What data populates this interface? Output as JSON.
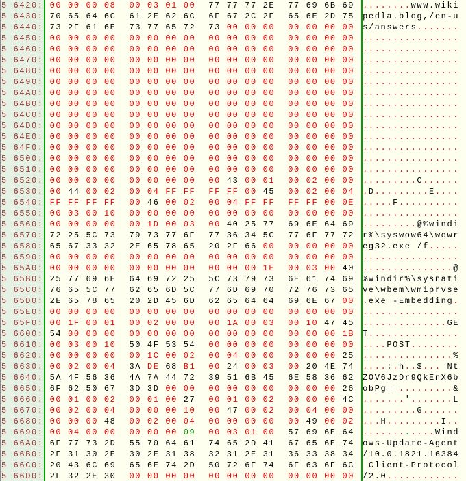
{
  "app": {
    "view": "hex-memory-dump"
  },
  "colors": {
    "background": "#FFFFF0",
    "address_background": "#E5F1E3",
    "address_text": "#993534",
    "divider_green": "#00A000",
    "nonprintable_red": "#EE0000",
    "printable_black": "#000000",
    "selected_green": "#009000",
    "left_edge_gray": "#8C8C8C"
  },
  "hex_view": {
    "bytes_per_row": 16,
    "selected_byte": {
      "row_address": "5 6690:",
      "byte_index": 7,
      "value": "09"
    },
    "rows": [
      {
        "address": "5 6420:",
        "bytes": [
          "00",
          "00",
          "00",
          "08",
          "00",
          "03",
          "01",
          "00",
          "77",
          "77",
          "77",
          "2E",
          "77",
          "69",
          "6B",
          "69"
        ],
        "ascii": "........www.wiki"
      },
      {
        "address": "5 6430:",
        "bytes": [
          "70",
          "65",
          "64",
          "6C",
          "61",
          "2E",
          "62",
          "6C",
          "6F",
          "67",
          "2C",
          "2F",
          "65",
          "6E",
          "2D",
          "75"
        ],
        "ascii": "pedla.blog,/en-u"
      },
      {
        "address": "5 6440:",
        "bytes": [
          "73",
          "2F",
          "61",
          "6E",
          "73",
          "77",
          "65",
          "72",
          "73",
          "00",
          "00",
          "00",
          "00",
          "00",
          "00",
          "00"
        ],
        "ascii": "s/answers......."
      },
      {
        "address": "5 6450:",
        "bytes": [
          "00",
          "00",
          "00",
          "00",
          "00",
          "00",
          "00",
          "00",
          "00",
          "00",
          "00",
          "00",
          "00",
          "00",
          "00",
          "00"
        ],
        "ascii": "................"
      },
      {
        "address": "5 6460:",
        "bytes": [
          "00",
          "00",
          "00",
          "00",
          "00",
          "00",
          "00",
          "00",
          "00",
          "00",
          "00",
          "00",
          "00",
          "00",
          "00",
          "00"
        ],
        "ascii": "................"
      },
      {
        "address": "5 6470:",
        "bytes": [
          "00",
          "00",
          "00",
          "00",
          "00",
          "00",
          "00",
          "00",
          "00",
          "00",
          "00",
          "00",
          "00",
          "00",
          "00",
          "00"
        ],
        "ascii": "................"
      },
      {
        "address": "5 6480:",
        "bytes": [
          "00",
          "00",
          "00",
          "00",
          "00",
          "00",
          "00",
          "00",
          "00",
          "00",
          "00",
          "00",
          "00",
          "00",
          "00",
          "00"
        ],
        "ascii": "................"
      },
      {
        "address": "5 6490:",
        "bytes": [
          "00",
          "00",
          "00",
          "00",
          "00",
          "00",
          "00",
          "00",
          "00",
          "00",
          "00",
          "00",
          "00",
          "00",
          "00",
          "00"
        ],
        "ascii": "................"
      },
      {
        "address": "5 64A0:",
        "bytes": [
          "00",
          "00",
          "00",
          "00",
          "00",
          "00",
          "00",
          "00",
          "00",
          "00",
          "00",
          "00",
          "00",
          "00",
          "00",
          "00"
        ],
        "ascii": "................"
      },
      {
        "address": "5 64B0:",
        "bytes": [
          "00",
          "00",
          "00",
          "00",
          "00",
          "00",
          "00",
          "00",
          "00",
          "00",
          "00",
          "00",
          "00",
          "00",
          "00",
          "00"
        ],
        "ascii": "................"
      },
      {
        "address": "5 64C0:",
        "bytes": [
          "00",
          "00",
          "00",
          "00",
          "00",
          "00",
          "00",
          "00",
          "00",
          "00",
          "00",
          "00",
          "00",
          "00",
          "00",
          "00"
        ],
        "ascii": "................"
      },
      {
        "address": "5 64D0:",
        "bytes": [
          "00",
          "00",
          "00",
          "00",
          "00",
          "00",
          "00",
          "00",
          "00",
          "00",
          "00",
          "00",
          "00",
          "00",
          "00",
          "00"
        ],
        "ascii": "................"
      },
      {
        "address": "5 64E0:",
        "bytes": [
          "00",
          "00",
          "00",
          "00",
          "00",
          "00",
          "00",
          "00",
          "00",
          "00",
          "00",
          "00",
          "00",
          "00",
          "00",
          "00"
        ],
        "ascii": "................"
      },
      {
        "address": "5 64F0:",
        "bytes": [
          "00",
          "00",
          "00",
          "00",
          "00",
          "00",
          "00",
          "00",
          "00",
          "00",
          "00",
          "00",
          "00",
          "00",
          "00",
          "00"
        ],
        "ascii": "................"
      },
      {
        "address": "5 6500:",
        "bytes": [
          "00",
          "00",
          "00",
          "00",
          "00",
          "00",
          "00",
          "00",
          "00",
          "00",
          "00",
          "00",
          "00",
          "00",
          "00",
          "00"
        ],
        "ascii": "................"
      },
      {
        "address": "5 6510:",
        "bytes": [
          "00",
          "00",
          "00",
          "00",
          "00",
          "00",
          "00",
          "00",
          "00",
          "00",
          "00",
          "00",
          "00",
          "00",
          "00",
          "00"
        ],
        "ascii": "................"
      },
      {
        "address": "5 6520:",
        "bytes": [
          "00",
          "00",
          "00",
          "00",
          "00",
          "00",
          "00",
          "00",
          "00",
          "43",
          "00",
          "01",
          "00",
          "02",
          "00",
          "00"
        ],
        "ascii": ".........C......"
      },
      {
        "address": "5 6530:",
        "bytes": [
          "00",
          "44",
          "00",
          "02",
          "00",
          "04",
          "FF",
          "FF",
          "FF",
          "FF",
          "00",
          "45",
          "00",
          "02",
          "00",
          "04"
        ],
        "ascii": ".D.........E...."
      },
      {
        "address": "5 6540:",
        "bytes": [
          "FF",
          "FF",
          "FF",
          "FF",
          "00",
          "46",
          "00",
          "02",
          "00",
          "04",
          "FF",
          "FF",
          "FF",
          "FF",
          "00",
          "0E"
        ],
        "ascii": ".....F.........."
      },
      {
        "address": "5 6550:",
        "bytes": [
          "00",
          "03",
          "00",
          "10",
          "00",
          "00",
          "00",
          "00",
          "00",
          "00",
          "00",
          "00",
          "00",
          "00",
          "00",
          "00"
        ],
        "ascii": "................"
      },
      {
        "address": "5 6560:",
        "bytes": [
          "00",
          "00",
          "00",
          "00",
          "00",
          "1D",
          "00",
          "03",
          "00",
          "40",
          "25",
          "77",
          "69",
          "6E",
          "64",
          "69"
        ],
        "ascii": ".........@%windi"
      },
      {
        "address": "5 6570:",
        "bytes": [
          "72",
          "25",
          "5C",
          "73",
          "79",
          "73",
          "77",
          "6F",
          "77",
          "36",
          "34",
          "5C",
          "77",
          "6F",
          "77",
          "72"
        ],
        "ascii": "r%\\syswow64\\wowr"
      },
      {
        "address": "5 6580:",
        "bytes": [
          "65",
          "67",
          "33",
          "32",
          "2E",
          "65",
          "78",
          "65",
          "20",
          "2F",
          "66",
          "00",
          "00",
          "00",
          "00",
          "00"
        ],
        "ascii": "eg32.exe /f....."
      },
      {
        "address": "5 6590:",
        "bytes": [
          "00",
          "00",
          "00",
          "00",
          "00",
          "00",
          "00",
          "00",
          "00",
          "00",
          "00",
          "00",
          "00",
          "00",
          "00",
          "00"
        ],
        "ascii": "................"
      },
      {
        "address": "5 65A0:",
        "bytes": [
          "00",
          "00",
          "00",
          "00",
          "00",
          "00",
          "00",
          "00",
          "00",
          "00",
          "00",
          "1E",
          "00",
          "03",
          "00",
          "40"
        ],
        "ascii": "...............@"
      },
      {
        "address": "5 65B0:",
        "bytes": [
          "25",
          "77",
          "69",
          "6E",
          "64",
          "69",
          "72",
          "25",
          "5C",
          "73",
          "79",
          "73",
          "6E",
          "61",
          "74",
          "69"
        ],
        "ascii": "%windir%\\sysnati"
      },
      {
        "address": "5 65C0:",
        "bytes": [
          "76",
          "65",
          "5C",
          "77",
          "62",
          "65",
          "6D",
          "5C",
          "77",
          "6D",
          "69",
          "70",
          "72",
          "76",
          "73",
          "65"
        ],
        "ascii": "ve\\wbem\\wmiprvse"
      },
      {
        "address": "5 65D0:",
        "bytes": [
          "2E",
          "65",
          "78",
          "65",
          "20",
          "2D",
          "45",
          "6D",
          "62",
          "65",
          "64",
          "64",
          "69",
          "6E",
          "67",
          "00"
        ],
        "ascii": ".exe -Embedding."
      },
      {
        "address": "5 65E0:",
        "bytes": [
          "00",
          "00",
          "00",
          "00",
          "00",
          "00",
          "00",
          "00",
          "00",
          "00",
          "00",
          "00",
          "00",
          "00",
          "00",
          "00"
        ],
        "ascii": "................"
      },
      {
        "address": "5 65F0:",
        "bytes": [
          "00",
          "1F",
          "00",
          "01",
          "00",
          "02",
          "00",
          "00",
          "00",
          "1A",
          "00",
          "03",
          "00",
          "10",
          "47",
          "45"
        ],
        "ascii": "..............GE"
      },
      {
        "address": "5 6600:",
        "bytes": [
          "54",
          "00",
          "00",
          "00",
          "00",
          "00",
          "00",
          "00",
          "00",
          "00",
          "00",
          "00",
          "00",
          "00",
          "00",
          "1B"
        ],
        "ascii": "T..............."
      },
      {
        "address": "5 6610:",
        "bytes": [
          "00",
          "03",
          "00",
          "10",
          "50",
          "4F",
          "53",
          "54",
          "00",
          "00",
          "00",
          "00",
          "00",
          "00",
          "00",
          "00"
        ],
        "ascii": "....POST........"
      },
      {
        "address": "5 6620:",
        "bytes": [
          "00",
          "00",
          "00",
          "00",
          "00",
          "1C",
          "00",
          "02",
          "00",
          "04",
          "00",
          "00",
          "00",
          "00",
          "00",
          "25"
        ],
        "ascii": "...............%"
      },
      {
        "address": "5 6630:",
        "bytes": [
          "00",
          "02",
          "00",
          "04",
          "3A",
          "DE",
          "68",
          "B1",
          "00",
          "24",
          "00",
          "03",
          "00",
          "20",
          "4E",
          "74"
        ],
        "ascii": "....:.h..$... Nt"
      },
      {
        "address": "5 6640:",
        "bytes": [
          "5A",
          "4F",
          "56",
          "36",
          "4A",
          "7A",
          "44",
          "72",
          "39",
          "51",
          "6B",
          "45",
          "6E",
          "58",
          "36",
          "62"
        ],
        "ascii": "ZOV6JzDr9QkEnX6b"
      },
      {
        "address": "5 6650:",
        "bytes": [
          "6F",
          "62",
          "50",
          "67",
          "3D",
          "3D",
          "00",
          "00",
          "00",
          "00",
          "00",
          "00",
          "00",
          "00",
          "00",
          "26"
        ],
        "ascii": "obPg==.........&"
      },
      {
        "address": "5 6660:",
        "bytes": [
          "00",
          "01",
          "00",
          "02",
          "00",
          "01",
          "00",
          "27",
          "00",
          "01",
          "00",
          "02",
          "00",
          "00",
          "00",
          "4C"
        ],
        "ascii": ".......'.......L"
      },
      {
        "address": "5 6670:",
        "bytes": [
          "00",
          "02",
          "00",
          "04",
          "00",
          "00",
          "00",
          "10",
          "00",
          "47",
          "00",
          "02",
          "00",
          "04",
          "00",
          "00"
        ],
        "ascii": ".........G......"
      },
      {
        "address": "5 6680:",
        "bytes": [
          "00",
          "00",
          "00",
          "48",
          "00",
          "02",
          "00",
          "04",
          "00",
          "00",
          "00",
          "00",
          "00",
          "49",
          "00",
          "02"
        ],
        "ascii": "...H.........I.."
      },
      {
        "address": "5 6690:",
        "bytes": [
          "00",
          "04",
          "00",
          "00",
          "00",
          "00",
          "00",
          "09",
          "00",
          "03",
          "01",
          "00",
          "57",
          "69",
          "6E",
          "64"
        ],
        "ascii": "............Wind"
      },
      {
        "address": "5 66A0:",
        "bytes": [
          "6F",
          "77",
          "73",
          "2D",
          "55",
          "70",
          "64",
          "61",
          "74",
          "65",
          "2D",
          "41",
          "67",
          "65",
          "6E",
          "74"
        ],
        "ascii": "ows-Update-Agent"
      },
      {
        "address": "5 66B0:",
        "bytes": [
          "2F",
          "31",
          "30",
          "2E",
          "30",
          "2E",
          "31",
          "38",
          "32",
          "31",
          "2E",
          "31",
          "36",
          "33",
          "38",
          "34"
        ],
        "ascii": "/10.0.1821.16384"
      },
      {
        "address": "5 66C0:",
        "bytes": [
          "20",
          "43",
          "6C",
          "69",
          "65",
          "6E",
          "74",
          "2D",
          "50",
          "72",
          "6F",
          "74",
          "6F",
          "63",
          "6F",
          "6C"
        ],
        "ascii": " Client-Protocol"
      },
      {
        "address": "5 66D0:",
        "bytes": [
          "2F",
          "32",
          "2E",
          "30",
          "00",
          "00",
          "00",
          "00",
          "00",
          "00",
          "00",
          "00",
          "00",
          "00",
          "00",
          "00"
        ],
        "ascii": "/2.0............"
      }
    ]
  }
}
